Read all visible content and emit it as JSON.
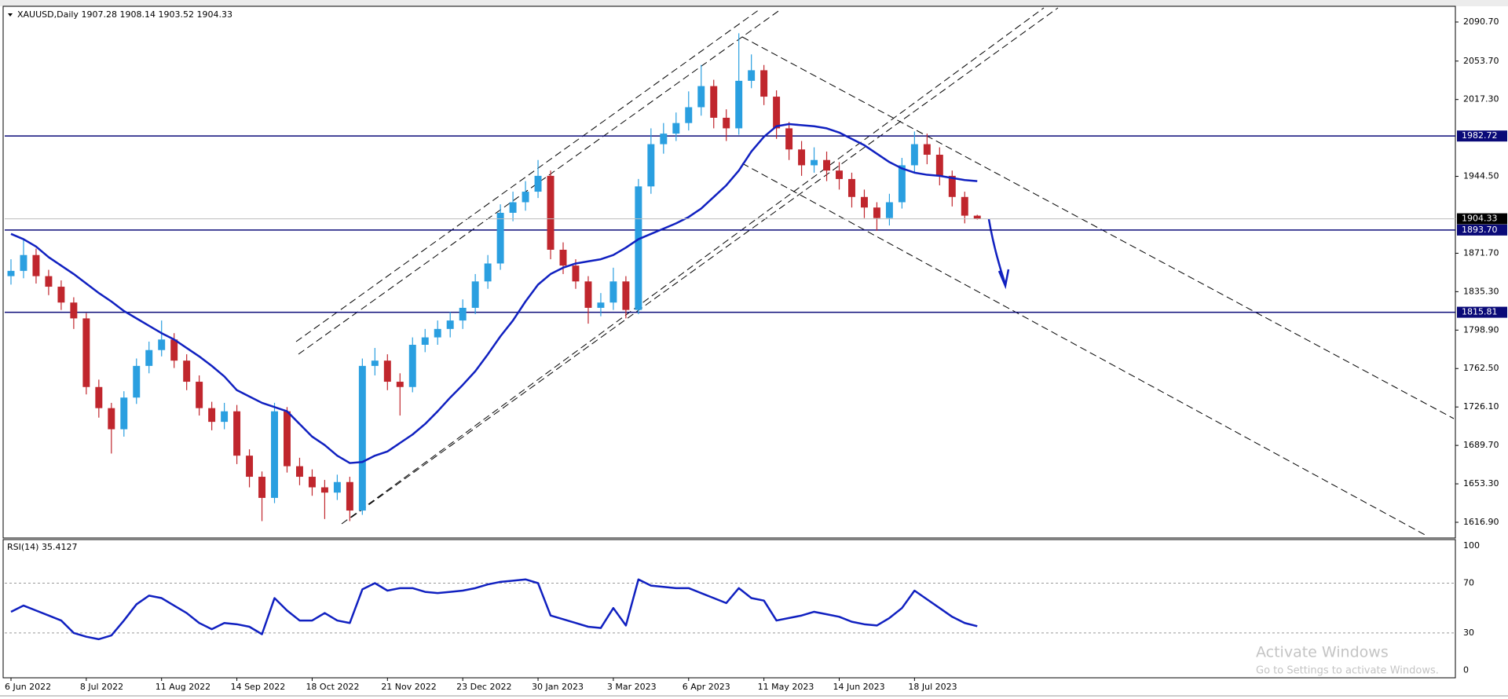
{
  "chart_data": {
    "type": "candlestick",
    "symbol": "XAUUSD,Daily",
    "xlim": [
      -0.5,
      115.1
    ],
    "xticks": [
      {
        "value": 0,
        "label": "6 Jun 2022"
      },
      {
        "value": 6,
        "label": "8 Jul 2022"
      },
      {
        "value": 12,
        "label": "11 Aug 2022"
      },
      {
        "value": 18,
        "label": "14 Sep 2022"
      },
      {
        "value": 24,
        "label": "18 Oct 2022"
      },
      {
        "value": 30,
        "label": "21 Nov 2022"
      },
      {
        "value": 36,
        "label": "23 Dec 2022"
      },
      {
        "value": 42,
        "label": "30 Jan 2023"
      },
      {
        "value": 48,
        "label": "3 Mar 2023"
      },
      {
        "value": 54,
        "label": "6 Apr 2023"
      },
      {
        "value": 60,
        "label": "11 May 2023"
      },
      {
        "value": 66,
        "label": "14 Jun 2023"
      },
      {
        "value": 72,
        "label": "18 Jul 2023"
      }
    ],
    "ylim": [
      1603.5,
      2104.1
    ],
    "yticks": [
      {
        "value": 2090.7,
        "label": "2090.70"
      },
      {
        "value": 2053.7,
        "label": "2053.70"
      },
      {
        "value": 2017.3,
        "label": "2017.30"
      },
      {
        "value": 1944.5,
        "label": "1944.50"
      },
      {
        "value": 1871.7,
        "label": "1871.70"
      },
      {
        "value": 1835.3,
        "label": "1835.30"
      },
      {
        "value": 1798.9,
        "label": "1798.90"
      },
      {
        "value": 1762.5,
        "label": "1762.50"
      },
      {
        "value": 1726.1,
        "label": "1726.10"
      },
      {
        "value": 1689.7,
        "label": "1689.70"
      },
      {
        "value": 1653.3,
        "label": "1653.30"
      },
      {
        "value": 1616.9,
        "label": "1616.90"
      }
    ],
    "up_color": "#2a9fe0",
    "down_color": "#c0262d",
    "level_color": "#0a0a78",
    "ma_color": "#1020c0",
    "levels": [
      1982.72,
      {
        "value": 1893.7,
        "label": "1893.70"
      },
      1815.81
    ],
    "candles": [
      [
        1850,
        1866,
        1842,
        1855
      ],
      [
        1855,
        1885,
        1848,
        1870
      ],
      [
        1870,
        1876,
        1843,
        1850
      ],
      [
        1850,
        1856,
        1832,
        1840
      ],
      [
        1840,
        1846,
        1818,
        1825
      ],
      [
        1825,
        1830,
        1800,
        1810
      ],
      [
        1810,
        1815,
        1738,
        1745
      ],
      [
        1745,
        1752,
        1716,
        1725
      ],
      [
        1725,
        1730,
        1682,
        1705
      ],
      [
        1705,
        1741,
        1698,
        1735
      ],
      [
        1735,
        1772,
        1729,
        1765
      ],
      [
        1765,
        1788,
        1758,
        1780
      ],
      [
        1780,
        1808,
        1774,
        1790
      ],
      [
        1790,
        1796,
        1763,
        1770
      ],
      [
        1770,
        1776,
        1742,
        1750
      ],
      [
        1750,
        1756,
        1718,
        1725
      ],
      [
        1725,
        1731,
        1704,
        1712
      ],
      [
        1712,
        1730,
        1705,
        1722
      ],
      [
        1722,
        1728,
        1672,
        1680
      ],
      [
        1680,
        1686,
        1650,
        1660
      ],
      [
        1660,
        1665,
        1618,
        1640
      ],
      [
        1640,
        1730,
        1635,
        1722
      ],
      [
        1722,
        1726,
        1664,
        1670
      ],
      [
        1670,
        1678,
        1652,
        1660
      ],
      [
        1660,
        1667,
        1642,
        1650
      ],
      [
        1650,
        1657,
        1620,
        1645
      ],
      [
        1645,
        1662,
        1638,
        1655
      ],
      [
        1655,
        1660,
        1618,
        1628
      ],
      [
        1628,
        1772,
        1624,
        1765
      ],
      [
        1765,
        1782,
        1756,
        1770
      ],
      [
        1770,
        1776,
        1742,
        1750
      ],
      [
        1750,
        1758,
        1718,
        1745
      ],
      [
        1745,
        1792,
        1740,
        1785
      ],
      [
        1785,
        1800,
        1778,
        1792
      ],
      [
        1792,
        1808,
        1785,
        1800
      ],
      [
        1800,
        1816,
        1792,
        1808
      ],
      [
        1808,
        1828,
        1800,
        1820
      ],
      [
        1820,
        1852,
        1814,
        1845
      ],
      [
        1845,
        1870,
        1838,
        1862
      ],
      [
        1862,
        1918,
        1856,
        1910
      ],
      [
        1910,
        1930,
        1902,
        1920
      ],
      [
        1920,
        1940,
        1912,
        1930
      ],
      [
        1930,
        1960,
        1924,
        1945
      ],
      [
        1945,
        1950,
        1866,
        1875
      ],
      [
        1875,
        1882,
        1852,
        1860
      ],
      [
        1860,
        1866,
        1838,
        1845
      ],
      [
        1845,
        1850,
        1805,
        1820
      ],
      [
        1820,
        1834,
        1812,
        1825
      ],
      [
        1825,
        1858,
        1818,
        1845
      ],
      [
        1845,
        1850,
        1810,
        1818
      ],
      [
        1818,
        1942,
        1814,
        1935
      ],
      [
        1935,
        1990,
        1928,
        1975
      ],
      [
        1975,
        1995,
        1966,
        1985
      ],
      [
        1985,
        2005,
        1978,
        1995
      ],
      [
        1995,
        2025,
        1988,
        2010
      ],
      [
        2010,
        2050,
        2002,
        2030
      ],
      [
        2030,
        2036,
        1990,
        2000
      ],
      [
        2000,
        2008,
        1978,
        1990
      ],
      [
        1990,
        2080,
        1984,
        2035
      ],
      [
        2035,
        2060,
        2028,
        2045
      ],
      [
        2045,
        2050,
        2012,
        2020
      ],
      [
        2020,
        2026,
        1980,
        1990
      ],
      [
        1990,
        1996,
        1960,
        1970
      ],
      [
        1970,
        1978,
        1945,
        1955
      ],
      [
        1955,
        1972,
        1948,
        1960
      ],
      [
        1960,
        1968,
        1940,
        1950
      ],
      [
        1950,
        1958,
        1932,
        1942
      ],
      [
        1942,
        1948,
        1915,
        1925
      ],
      [
        1925,
        1932,
        1905,
        1915
      ],
      [
        1915,
        1920,
        1893,
        1905
      ],
      [
        1905,
        1928,
        1898,
        1920
      ],
      [
        1920,
        1962,
        1914,
        1955
      ],
      [
        1955,
        1987,
        1948,
        1975
      ],
      [
        1975,
        1985,
        1956,
        1965
      ],
      [
        1965,
        1972,
        1936,
        1945
      ],
      [
        1945,
        1950,
        1916,
        1925
      ],
      [
        1925,
        1930,
        1900,
        1907.28
      ],
      [
        1907.28,
        1908.14,
        1903.52,
        1904.33
      ]
    ],
    "ma": [
      1890,
      1885,
      1878,
      1868,
      1860,
      1852,
      1843,
      1834,
      1826,
      1817,
      1810,
      1803,
      1796,
      1790,
      1782,
      1774,
      1765,
      1755,
      1742,
      1736,
      1730,
      1726,
      1722,
      1710,
      1698,
      1690,
      1680,
      1673,
      1674,
      1680,
      1684,
      1692,
      1700,
      1710,
      1722,
      1735,
      1747,
      1760,
      1776,
      1793,
      1808,
      1826,
      1842,
      1852,
      1858,
      1862,
      1864,
      1866,
      1870,
      1877,
      1885,
      1890,
      1895,
      1900,
      1906,
      1914,
      1925,
      1936,
      1950,
      1968,
      1982,
      1992,
      1994,
      1993,
      1992,
      1990,
      1986,
      1980,
      1974,
      1966,
      1958,
      1952,
      1948,
      1946,
      1945,
      1943,
      1941,
      1940
    ],
    "rsi": {
      "label": "RSI(14)",
      "ylim": [
        -6,
        105
      ],
      "yticks": [
        100,
        70,
        30,
        0
      ],
      "color": "#1020c0",
      "values": [
        47,
        52,
        48,
        44,
        40,
        30,
        27,
        25,
        28,
        40,
        53,
        60,
        58,
        52,
        46,
        38,
        33,
        38,
        37,
        35,
        29,
        58,
        48,
        40,
        40,
        46,
        40,
        38,
        65,
        70,
        64,
        66,
        66,
        63,
        62,
        63,
        64,
        66,
        69,
        71,
        72,
        73,
        70,
        44,
        41,
        38,
        35,
        34,
        50,
        36,
        73,
        68,
        67,
        66,
        66,
        62,
        58,
        54,
        66,
        58,
        56,
        40,
        42,
        44,
        47,
        45,
        43,
        39,
        37,
        36,
        42,
        50,
        64,
        57,
        50,
        43,
        38,
        35.4127
      ]
    }
  },
  "watermark": {
    "title": "Activate Windows",
    "subtitle": "Go to Settings to activate Windows."
  }
}
